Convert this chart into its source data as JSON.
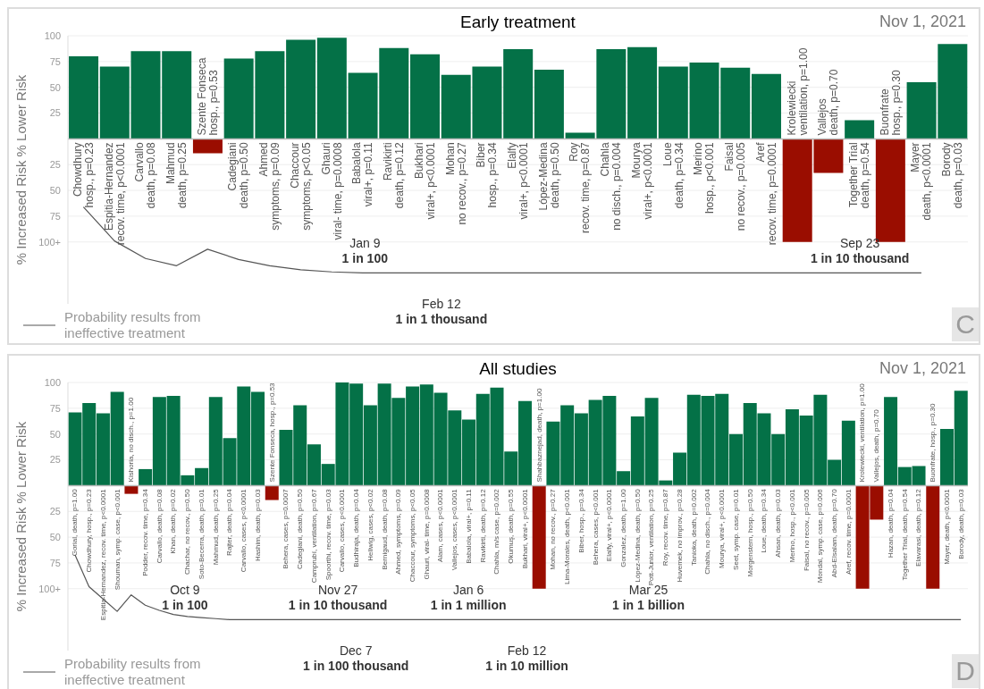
{
  "chart_data": [
    {
      "type": "bar",
      "title": "Early treatment",
      "subtitle": "Nov 1, 2021",
      "ylabel": "% Increased Risk % Lower Risk",
      "ylim": [
        -160,
        100
      ],
      "yticks": [
        100,
        75,
        50,
        25,
        {
          "value": -25,
          "label": "25"
        },
        {
          "value": -50,
          "label": "50"
        },
        {
          "value": -75,
          "label": "75"
        },
        {
          "value": -100,
          "label": "100+"
        }
      ],
      "grid": "y",
      "legend": "bottom left",
      "marker": "none",
      "line_style": "solid",
      "categories": [
        "Chowdhury\nhosp., p=0.23",
        "Espitia-Hernandez\nrecov. time, p<0.0001",
        "Carvallo\ndeath, p=0.08",
        "Mahmud\ndeath, p=0.25",
        "Szente Fonseca\nhosp., p=0.53",
        "Cadegiani\ndeath, p=0.50",
        "Ahmed\nsymptoms, p=0.09",
        "Chaccour\nsymptoms, p<0.05",
        "Ghauri\nviral- time, p=0.0008",
        "Babalola\nviral+, p=0.11",
        "Ravikirti\ndeath, p=0.12",
        "Bukhari\nviral+, p<0.0001",
        "Mohan\nno recov., p=0.27",
        "Biber\nhosp., p=0.34",
        "Elalfy\nviral+, p<0.0001",
        "López-Medina\ndeath, p=0.50",
        "Roy\nrecov. time, p=0.87",
        "Chahla\nno disch., p=0.004",
        "Mourya\nviral+, p<0.0001",
        "Loue\ndeath, p=0.34",
        "Merino\nhosp., p<0.001",
        "Faisal\nno recov., p=0.005",
        "Aref\nrecov. time, p=0.0001",
        "Krolewiecki\nventilation, p=1.00",
        "Vallejos\ndeath, p=0.70",
        "Together Trial\ndeath, p=0.54",
        "Buonfrate\nhosp., p=0.30",
        "Mayer\ndeath, p<0.0001",
        "Borody\ndeath, p=0.03"
      ],
      "series": [
        {
          "type": "bar",
          "values": [
            80,
            70,
            85,
            85,
            -14,
            78,
            85,
            96,
            98,
            64,
            88,
            82,
            62,
            70,
            87,
            67,
            6,
            87,
            89,
            70,
            74,
            69,
            63,
            -100,
            -33,
            18,
            -100,
            55,
            92
          ],
          "colors": [
            "#047147",
            "#047147",
            "#047147",
            "#047147",
            "#9a0d00",
            "#047147",
            "#047147",
            "#047147",
            "#047147",
            "#047147",
            "#047147",
            "#047147",
            "#047147",
            "#047147",
            "#047147",
            "#047147",
            "#047147",
            "#047147",
            "#047147",
            "#047147",
            "#047147",
            "#047147",
            "#047147",
            "#9a0d00",
            "#9a0d00",
            "#047147",
            "#9a0d00",
            "#047147",
            "#047147"
          ]
        },
        {
          "type": "line",
          "name": "Probability results from ineffective treatment",
          "color": "#555555",
          "values": [
            -66,
            -99,
            -116,
            -123,
            -107,
            -117,
            -123,
            -127,
            -129,
            -130,
            -130,
            -130,
            -130,
            -130,
            -130,
            -130,
            -130,
            -130,
            -130,
            -130,
            -130,
            -130,
            -130,
            -130,
            -130,
            -130,
            -130,
            -130,
            null
          ]
        }
      ],
      "annotations": [
        "Jan 9\n1 in 100",
        "Sep 23\n1 in 10 thousand",
        "Feb 12\n1 in 1 thousand",
        "C"
      ]
    },
    {
      "type": "bar",
      "title": "All studies",
      "subtitle": "Nov 1, 2021",
      "ylabel": "% Increased Risk % Lower Risk",
      "ylim": [
        -160,
        100
      ],
      "yticks": [
        100,
        75,
        50,
        25,
        {
          "value": -25,
          "label": "25"
        },
        {
          "value": -50,
          "label": "50"
        },
        {
          "value": -75,
          "label": "75"
        },
        {
          "value": -100,
          "label": "100+"
        }
      ],
      "grid": "y",
      "legend": "bottom left",
      "marker": "none",
      "line_style": "solid",
      "categories": [
        "Gorial, death, p=1.00",
        "Chowdhury, hosp., p=0.23",
        "Espitia-Hernandez, recov. time, p<0.0001",
        "Shouman, symp. case, p<0.001",
        "Kishoria, no disch., p=1.00",
        "Podder, recov. time, p=0.34",
        "Carvallo, death, p=0.08",
        "Khan, death, p=0.02",
        "Chachar, no recov., p=0.50",
        "Soto-Becerra, death, p=0.01",
        "Mahmud, death, p=0.25",
        "Rajter, death, p=0.04",
        "Carvallo, cases, p<0.0001",
        "Hashim, death, p=0.03",
        "Szente Fonseca, hosp., p=0.53",
        "Behera, cases, p=0.0007",
        "Cadegiani, death, p=0.50",
        "Camprubí, ventilation, p=0.67",
        "Spoorthi, recov. time, p=0.03",
        "Carvallo, cases, p<0.0001",
        "Budhiraja, death, p=0.04",
        "Hellwig, cases, p<0.02",
        "Bernigaud, death, p=0.08",
        "Ahmed, symptoms, p=0.09",
        "Chaccour, symptoms, p<0.05",
        "Ghauri, viral- time, p=0.0008",
        "Alam, cases, p<0.0001",
        "Vallejos, cases, p<0.0001",
        "Babalola, viral+, p=0.11",
        "Ravikirti, death, p=0.12",
        "Chahla, m/s case, p=0.002",
        "Okumuş, death, p=0.55",
        "Bukhari, viral+, p<0.0001",
        "Shahbaznejad, death, p=1.00",
        "Mohan, no recov., p=0.27",
        "Lima-Morales, death, p<0.001",
        "Biber, hosp., p=0.34",
        "Behera, cases, p<0.001",
        "Elalfy, viral+, p<0.0001",
        "Gonzalez, death, p=1.00",
        "López-Medina, death, p=0.50",
        "Pott-Junior, ventilation, p=0.25",
        "Roy, recov. time, p=0.87",
        "Huvemek, no improv., p=0.28",
        "Tanioka, death, p=0.002",
        "Chahla, no disch., p=0.004",
        "Mourya, viral+, p<0.0001",
        "Seet, symp. case, p=0.01",
        "Morgenstern, hosp., p=0.50",
        "Loue, death, p=0.34",
        "Ahsan, death, p=0.03",
        "Merino, hosp., p<0.001",
        "Faisal, no recov., p=0.005",
        "Mondal, symp. case, p=0.006",
        "Abd-Elsalam, death, p=0.70",
        "Aref, recov. time, p=0.0001",
        "Krolewiecki, ventilation, p=1.00",
        "Vallejos, death, p=0.70",
        "Hazan, death, p=0.04",
        "Together Trial, death, p=0.54",
        "Elavarasi, death, p=0.12",
        "Buonfrate, hosp., p=0.30",
        "Mayer, death, p<0.0001",
        "Borody, death, p=0.03"
      ],
      "series": [
        {
          "type": "bar",
          "values": [
            71,
            80,
            70,
            91,
            -8,
            16,
            86,
            87,
            10,
            17,
            86,
            46,
            96,
            91,
            -14,
            54,
            78,
            40,
            21,
            100,
            99,
            78,
            99,
            85,
            96,
            98,
            90,
            73,
            64,
            89,
            95,
            33,
            82,
            -100,
            62,
            78,
            70,
            83,
            87,
            14,
            67,
            85,
            5,
            32,
            88,
            87,
            89,
            50,
            80,
            70,
            50,
            74,
            68,
            88,
            25,
            63,
            -100,
            -33,
            86,
            18,
            19,
            -100,
            55,
            92
          ],
          "colors": [
            "#047147",
            "#047147",
            "#047147",
            "#047147",
            "#9a0d00",
            "#047147",
            "#047147",
            "#047147",
            "#047147",
            "#047147",
            "#047147",
            "#047147",
            "#047147",
            "#047147",
            "#9a0d00",
            "#047147",
            "#047147",
            "#047147",
            "#047147",
            "#047147",
            "#047147",
            "#047147",
            "#047147",
            "#047147",
            "#047147",
            "#047147",
            "#047147",
            "#047147",
            "#047147",
            "#047147",
            "#047147",
            "#047147",
            "#047147",
            "#9a0d00",
            "#047147",
            "#047147",
            "#047147",
            "#047147",
            "#047147",
            "#047147",
            "#047147",
            "#047147",
            "#047147",
            "#047147",
            "#047147",
            "#047147",
            "#047147",
            "#047147",
            "#047147",
            "#047147",
            "#047147",
            "#047147",
            "#047147",
            "#047147",
            "#047147",
            "#047147",
            "#9a0d00",
            "#9a0d00",
            "#047147",
            "#047147",
            "#047147",
            "#9a0d00",
            "#047147",
            "#047147"
          ]
        },
        {
          "type": "line",
          "name": "Probability results from ineffective treatment",
          "color": "#555555",
          "values": [
            -67,
            -98,
            -110,
            -122,
            -106,
            -116,
            -121,
            -125,
            -127,
            -128,
            -129,
            -130,
            -130,
            -130,
            -130,
            -130,
            -130,
            -130,
            -130,
            -130,
            -130,
            -130,
            -130,
            -130,
            -130,
            -130,
            -130,
            -130,
            -130,
            -130,
            -130,
            -130,
            -130,
            -130,
            -130,
            -130,
            -130,
            -130,
            -130,
            -130,
            -130,
            -130,
            -130,
            -130,
            -130,
            -130,
            -130,
            -130,
            -130,
            -130,
            -130,
            -130,
            -130,
            -130,
            -130,
            -130,
            -130,
            -130,
            -130,
            -130,
            -130,
            -130,
            -130,
            -130
          ]
        }
      ],
      "annotations": [
        "Oct 9\n1 in 100",
        "Nov 27\n1 in 10 thousand",
        "Jan 6\n1 in 1 million",
        "Mar 25\n1 in 1 billion",
        "Dec 7\n1 in 100 thousand",
        "Feb 12\n1 in 10 million",
        "D"
      ]
    }
  ]
}
